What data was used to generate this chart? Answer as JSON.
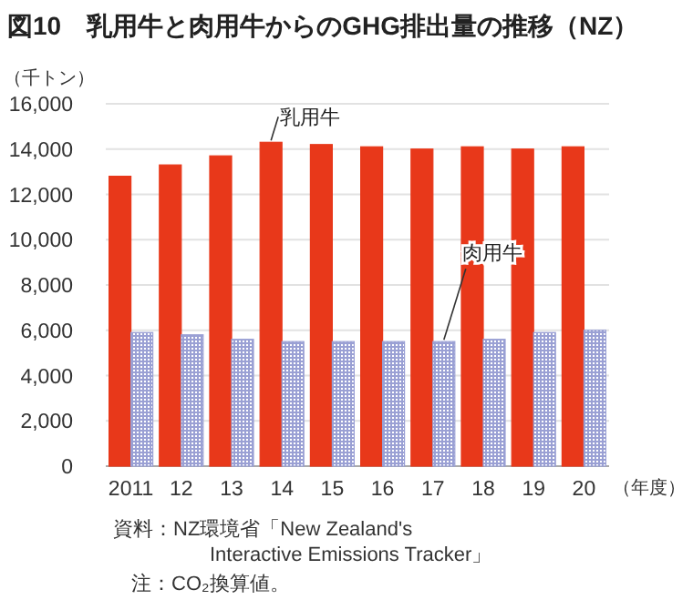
{
  "chart_data": {
    "type": "bar",
    "title": "図10　乳用牛と肉用牛からのGHG排出量の推移（NZ）",
    "ylabel": "（千トン）",
    "xlabel": "（年度）",
    "categories": [
      "2011",
      "12",
      "13",
      "14",
      "15",
      "16",
      "17",
      "18",
      "19",
      "20"
    ],
    "series": [
      {
        "name": "乳用牛",
        "color": "#e8381a",
        "values": [
          12800,
          13300,
          13700,
          14300,
          14200,
          14100,
          14000,
          14100,
          14000,
          14100
        ]
      },
      {
        "name": "肉用牛",
        "color": "#9aa0d4",
        "values": [
          5900,
          5800,
          5600,
          5500,
          5500,
          5500,
          5500,
          5600,
          5900,
          6000
        ]
      }
    ],
    "ylim": [
      0,
      16000
    ],
    "yticks": [
      {
        "value": 0,
        "label": "0"
      },
      {
        "value": 2000,
        "label": "2,000"
      },
      {
        "value": 4000,
        "label": "4,000"
      },
      {
        "value": 6000,
        "label": "6,000"
      },
      {
        "value": 8000,
        "label": "8,000"
      },
      {
        "value": 10000,
        "label": "10,000"
      },
      {
        "value": 12000,
        "label": "12,000"
      },
      {
        "value": 14000,
        "label": "14,000"
      },
      {
        "value": 16000,
        "label": "16,000"
      }
    ],
    "grid": "y",
    "annotations": [
      "資料：NZ環境省「New Zealand's Interactive Emissions Tracker」",
      "注：CO₂換算値。"
    ]
  }
}
